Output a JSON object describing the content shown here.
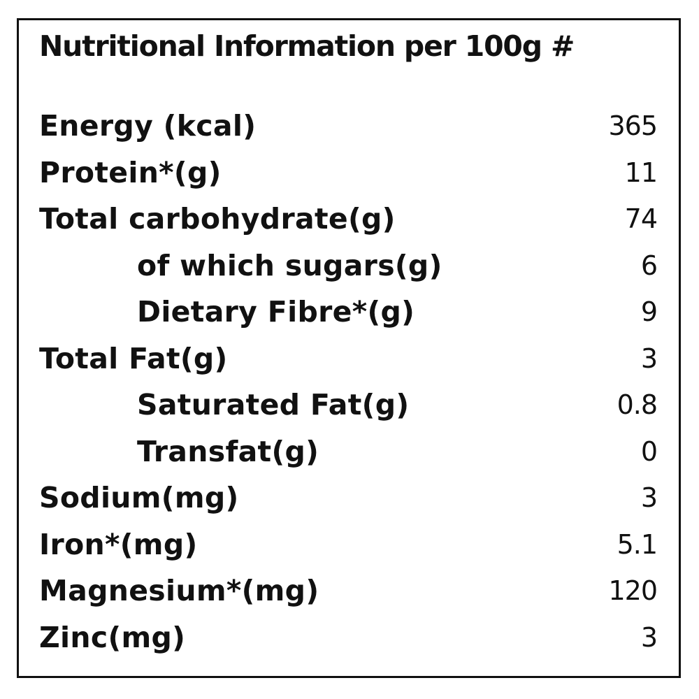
{
  "title": "Nutritional Information per 100g #",
  "rows": [
    {
      "label": "Energy (kcal)",
      "value": "365",
      "indent": false
    },
    {
      "label": "Protein*(g)",
      "value": "11",
      "indent": false
    },
    {
      "label": "Total carbohydrate(g)",
      "value": "74",
      "indent": false
    },
    {
      "label": "of which sugars(g)",
      "value": "6",
      "indent": true
    },
    {
      "label": "Dietary Fibre*(g)",
      "value": "9",
      "indent": true
    },
    {
      "label": "Total Fat(g)",
      "value": "3",
      "indent": false
    },
    {
      "label": "Saturated Fat(g)",
      "value": "0.8",
      "indent": true
    },
    {
      "label": "Transfat(g)",
      "value": "0",
      "indent": true
    },
    {
      "label": "Sodium(mg)",
      "value": "3",
      "indent": false
    },
    {
      "label": "Iron*(mg)",
      "value": "5.1",
      "indent": false
    },
    {
      "label": "Magnesium*(mg)",
      "value": "120",
      "indent": false
    },
    {
      "label": "Zinc(mg)",
      "value": "3",
      "indent": false
    }
  ]
}
